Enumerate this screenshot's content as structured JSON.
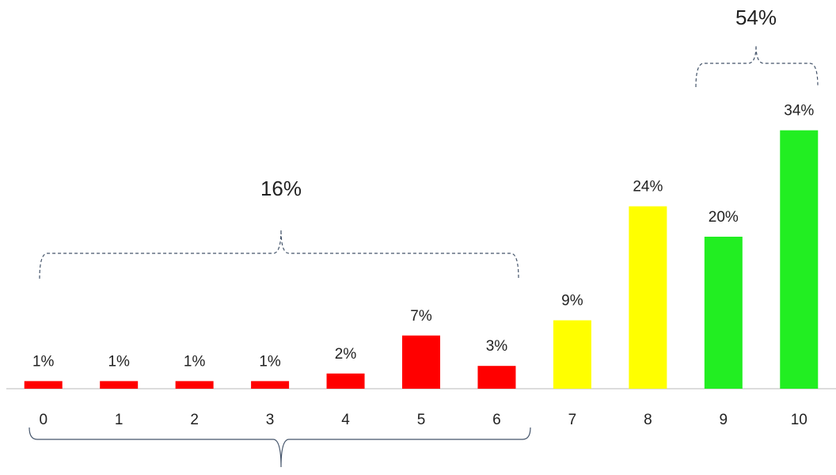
{
  "chart_data": {
    "type": "bar",
    "categories": [
      "0",
      "1",
      "2",
      "3",
      "4",
      "5",
      "6",
      "7",
      "8",
      "9",
      "10"
    ],
    "values": [
      1,
      1,
      1,
      1,
      2,
      7,
      3,
      9,
      24,
      20,
      34
    ],
    "value_labels": [
      "1%",
      "1%",
      "1%",
      "1%",
      "2%",
      "7%",
      "3%",
      "9%",
      "24%",
      "20%",
      "34%"
    ],
    "colors": [
      "#ff0000",
      "#ff0000",
      "#ff0000",
      "#ff0000",
      "#ff0000",
      "#ff0000",
      "#ff0000",
      "#ffff00",
      "#ffff00",
      "#22ee22",
      "#22ee22"
    ],
    "ylim": [
      0,
      40
    ],
    "annotations": [
      "16%",
      "54%"
    ]
  }
}
